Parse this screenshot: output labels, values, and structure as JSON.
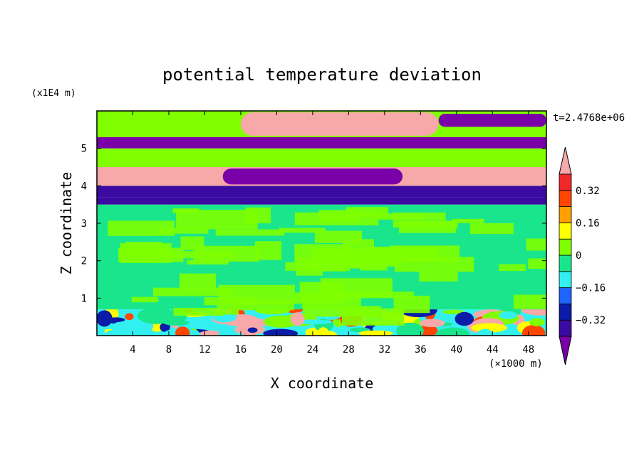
{
  "chart_data": {
    "type": "heatmap",
    "title": "potential temperature deviation",
    "xlabel": "X coordinate",
    "ylabel": "Z coordinate",
    "x_unit": "(×1000 m)",
    "y_unit": "(x1E4 m)",
    "time_label": "t=2.4768e+06",
    "xlim": [
      0,
      50
    ],
    "ylim": [
      0,
      6
    ],
    "x_ticks": [
      4,
      8,
      12,
      16,
      20,
      24,
      28,
      32,
      36,
      40,
      44,
      48
    ],
    "y_ticks": [
      1,
      2,
      3,
      4,
      5
    ],
    "colorbar": {
      "extend": "both",
      "levels": [
        -0.4,
        -0.32,
        -0.24,
        -0.16,
        -0.08,
        0,
        0.08,
        0.16,
        0.24,
        0.32,
        0.4
      ],
      "tick_labels": [
        "0.32",
        "0.16",
        "0",
        "−0.16",
        "−0.32"
      ],
      "tick_values": [
        0.32,
        0.16,
        0,
        -0.16,
        -0.32
      ],
      "colors": [
        "#7a00a8",
        "#3b0aa0",
        "#0b1ca8",
        "#1e64ff",
        "#33f0f0",
        "#19e68c",
        "#7fff00",
        "#ffff00",
        "#ff9f00",
        "#ff4500",
        "#f02828",
        "#f7a8a8"
      ]
    },
    "bands": [
      {
        "z": [
          0.0,
          0.7
        ],
        "pattern": "turbulent",
        "colors": [
          "#f7a8a8",
          "#ff4500",
          "#ffff00",
          "#33f0f0",
          "#0b1ca8",
          "#7fff00",
          "#19e68c"
        ]
      },
      {
        "z": [
          0.7,
          3.5
        ],
        "pattern": "mixed",
        "colors": [
          "#19e68c",
          "#7fff00"
        ]
      },
      {
        "z": [
          3.5,
          3.7
        ],
        "value": -0.4
      },
      {
        "z": [
          3.7,
          4.0
        ],
        "value": -0.36
      },
      {
        "z": [
          4.0,
          4.5
        ],
        "pattern": "lens",
        "outer_value": 0.44,
        "inner_value": -0.44,
        "inner_x": [
          14,
          34
        ]
      },
      {
        "z": [
          4.5,
          5.0
        ],
        "value": 0.05
      },
      {
        "z": [
          5.0,
          5.3
        ],
        "value": -0.44
      },
      {
        "z": [
          5.3,
          6.0
        ],
        "pattern": "lens",
        "outer_value": 0.02,
        "inner_value": 0.44,
        "inner_x": [
          16,
          38
        ],
        "right_value": -0.44,
        "right_x": [
          38,
          50
        ]
      }
    ]
  }
}
